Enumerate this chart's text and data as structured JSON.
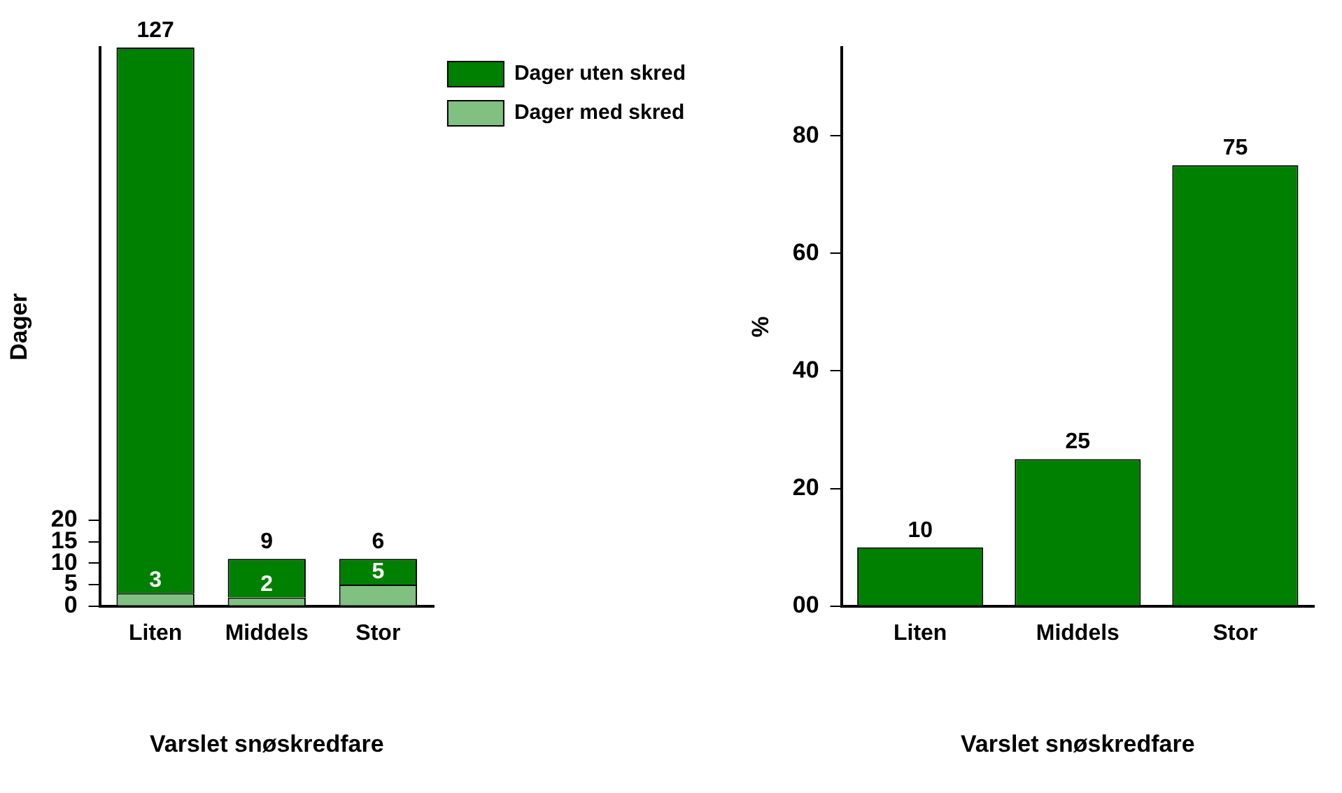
{
  "chart_data": [
    {
      "type": "bar",
      "stacked": true,
      "categories": [
        "Liten",
        "Middels",
        "Stor"
      ],
      "series": [
        {
          "name": "Dager med skred",
          "color": "#80c080",
          "values": [
            3,
            2,
            5
          ]
        },
        {
          "name": "Dager uten skred",
          "color": "#008000",
          "values": [
            127,
            9,
            6
          ]
        }
      ],
      "ylim": [
        0,
        130
      ],
      "yticks": [
        0,
        5,
        10,
        15,
        20
      ],
      "ylabel": "Dager",
      "xlabel": "Varslet snøskredfare",
      "legend": "top right",
      "data_labels": true
    },
    {
      "type": "bar",
      "categories": [
        "Liten",
        "Middels",
        "Stor"
      ],
      "values": [
        10,
        25,
        75
      ],
      "color": "#008000",
      "ylim": [
        0,
        95
      ],
      "yticks": [
        {
          "value": 0,
          "label": "00"
        },
        20,
        40,
        60,
        80
      ],
      "ylabel": "%",
      "xlabel": "Varslet snøskredfare",
      "data_labels": true
    }
  ]
}
